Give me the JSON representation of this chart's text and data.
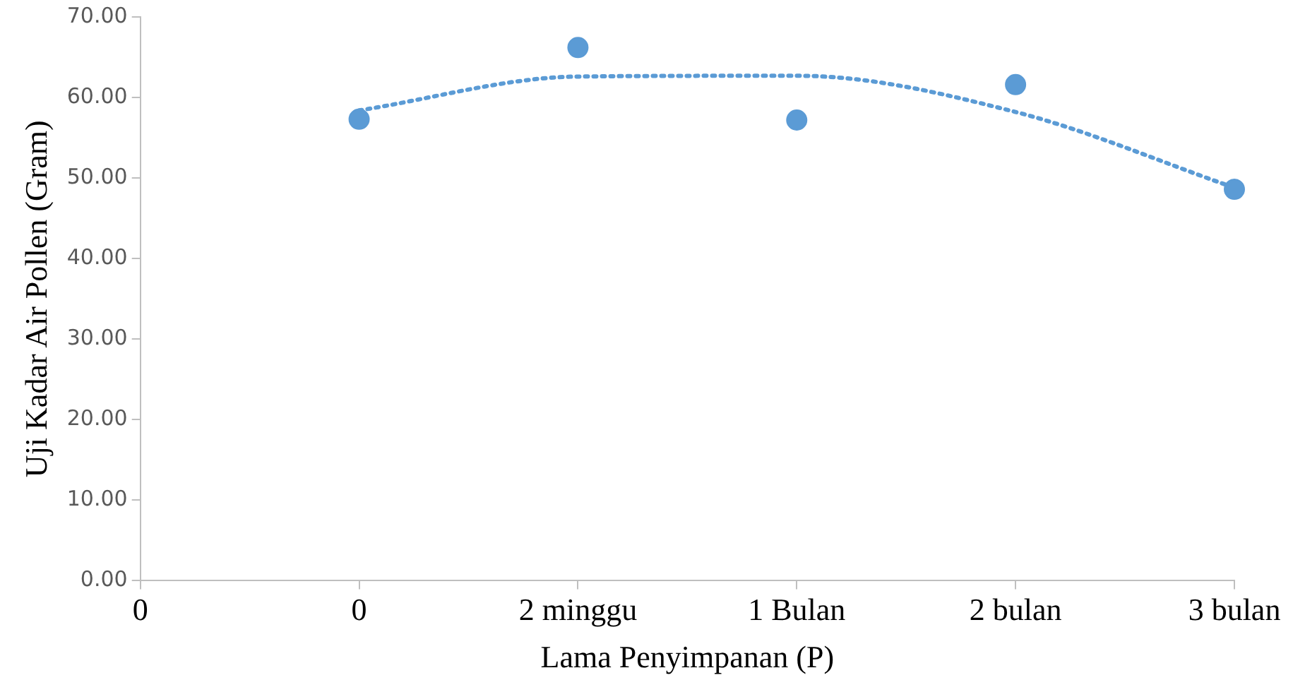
{
  "chart_data": {
    "type": "scatter",
    "xlabel": "Lama Penyimpanan (P)",
    "ylabel": "Uji Kadar Air Pollen (Gram)",
    "categories": [
      "0",
      "0",
      "2 minggu",
      "1 Bulan",
      "2 bulan",
      "3 bulan"
    ],
    "series": [
      {
        "color": "#5b9bd5",
        "values": [
          null,
          57.3,
          66.2,
          57.2,
          61.6,
          48.6
        ]
      },
      {
        "type": "line",
        "color": "#5b9bd5",
        "line_style": "dotted",
        "marker": "none",
        "values": [
          null,
          58.4,
          62.6,
          62.7,
          58.2,
          48.8
        ]
      }
    ],
    "ylim": [
      0,
      70
    ],
    "yticks": [
      {
        "value": 0,
        "label": "0.00"
      },
      {
        "value": 10,
        "label": "10.00"
      },
      {
        "value": 20,
        "label": "20.00"
      },
      {
        "value": 30,
        "label": "30.00"
      },
      {
        "value": 40,
        "label": "40.00"
      },
      {
        "value": 50,
        "label": "50.00"
      },
      {
        "value": 60,
        "label": "60.00"
      },
      {
        "value": 70,
        "label": "70.00"
      }
    ],
    "grid": false,
    "legend": false,
    "marker": "circle"
  }
}
